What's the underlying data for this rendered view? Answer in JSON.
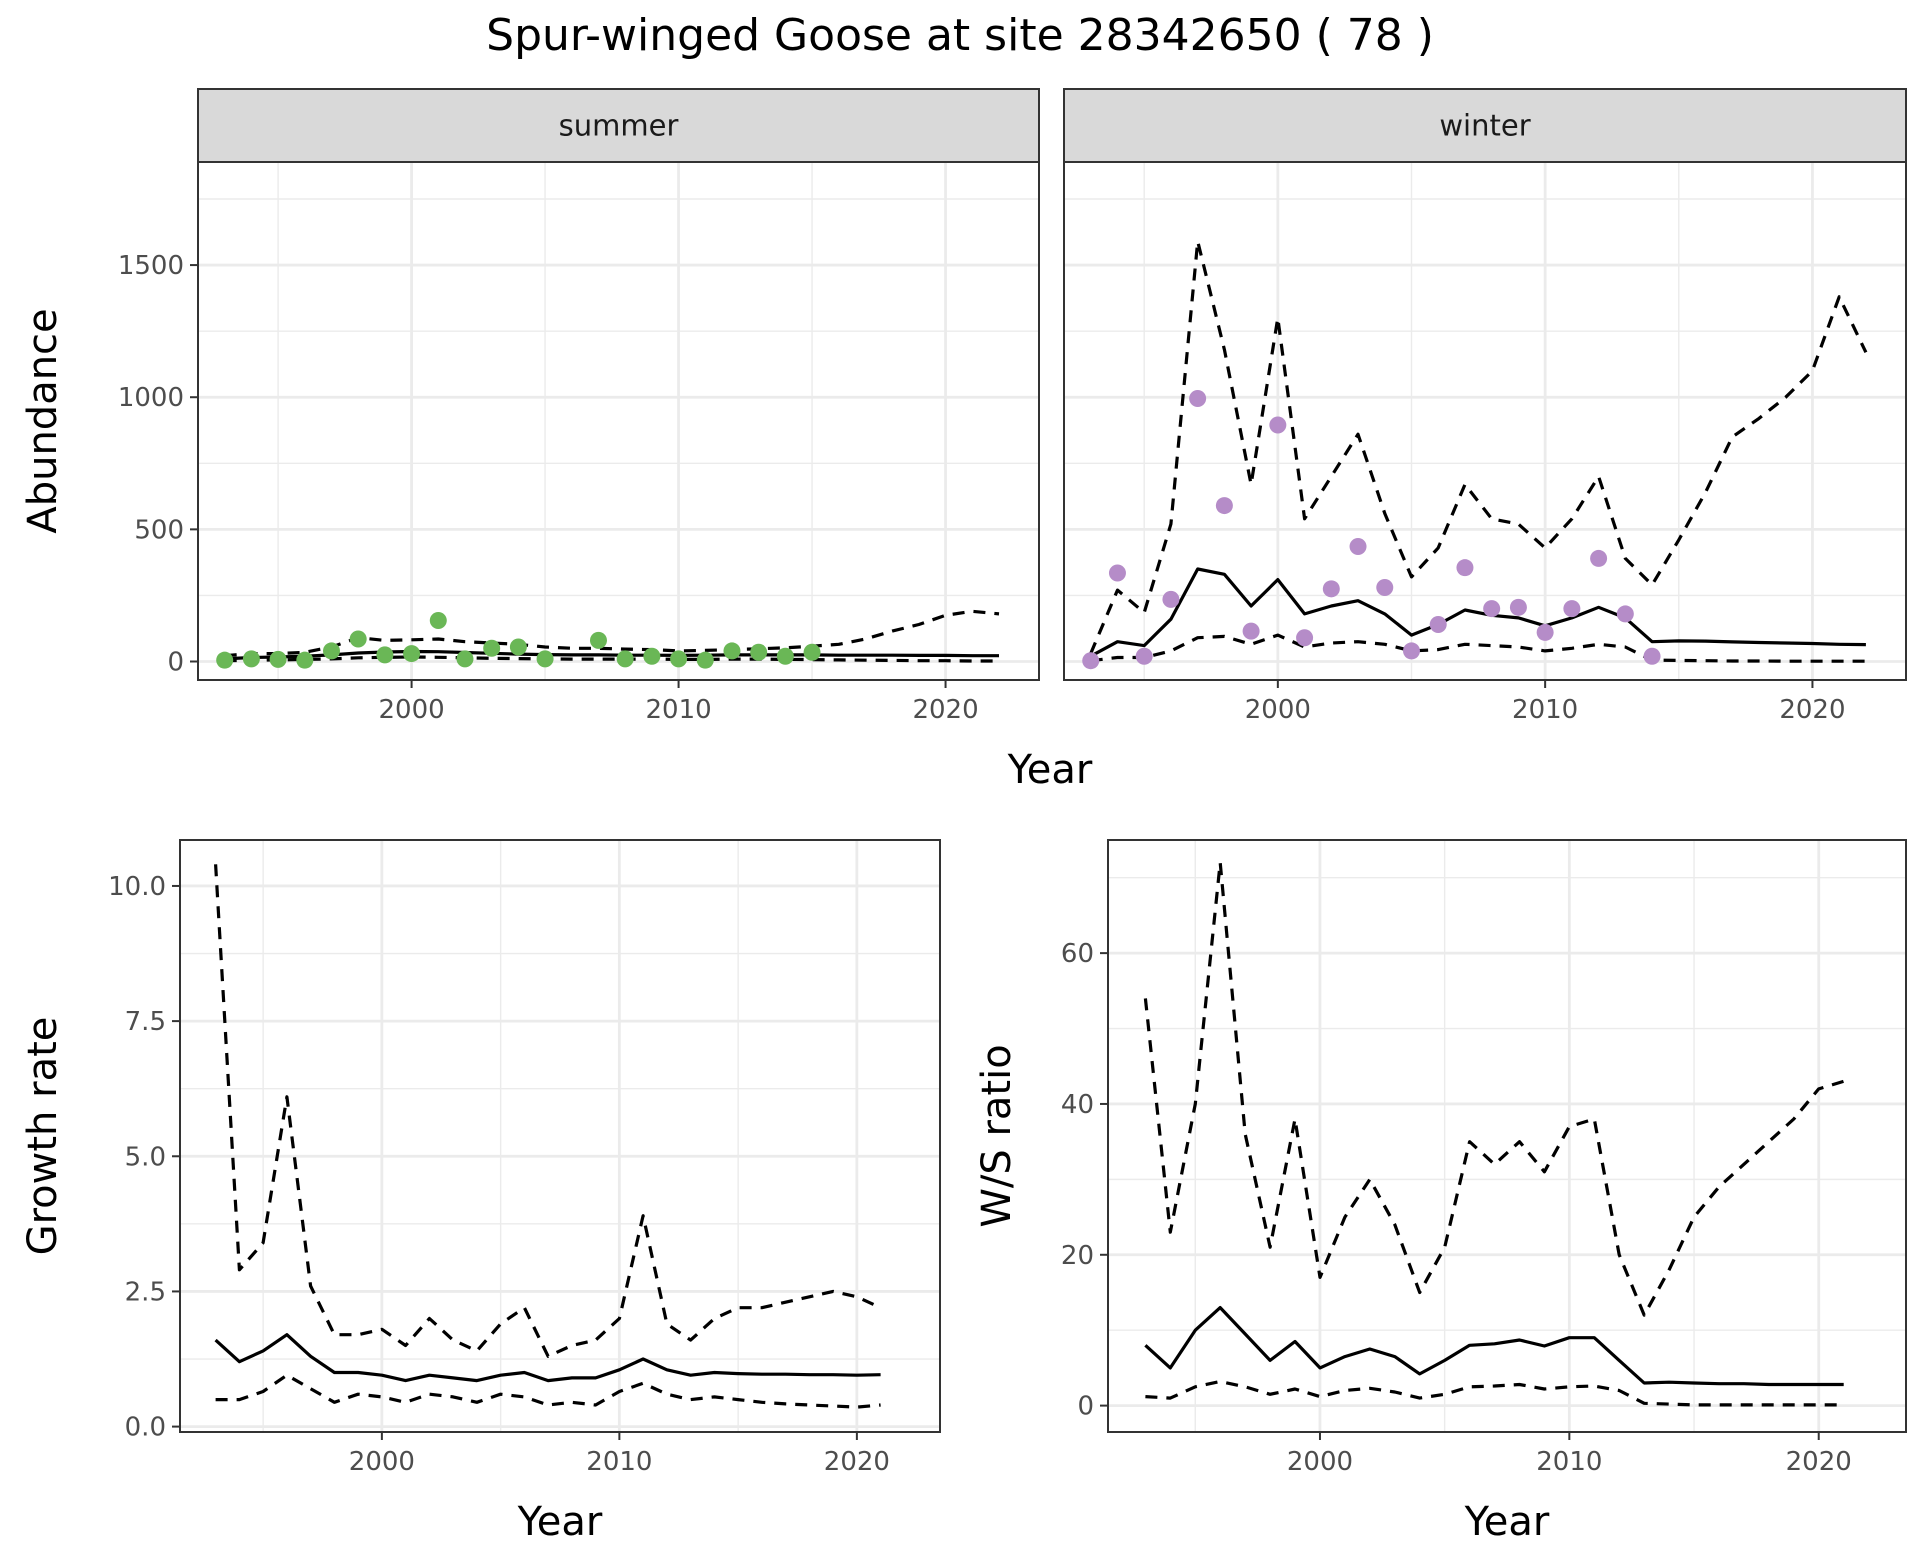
{
  "title": "Spur-winged Goose at site 28342650 ( 78 )",
  "colors": {
    "summer_points": "#6ab756",
    "winter_points": "#b58cc8",
    "lines": "#000000",
    "strip_fill": "#d9d9d9",
    "grid": "#ebebeb"
  },
  "chart_data": [
    {
      "type": "line",
      "facet": "summer",
      "strip_label": "summer",
      "xlabel": "Year",
      "ylabel": "Abundance",
      "xlim": [
        1992,
        2023.5
      ],
      "ylim": [
        -70,
        1890
      ],
      "x_ticks": [
        2000,
        2010,
        2020
      ],
      "y_ticks": [
        0,
        500,
        1000,
        1500
      ],
      "grid": true,
      "points": {
        "x": [
          1993,
          1994,
          1995,
          1996,
          1997,
          1998,
          1999,
          2000,
          2001,
          2002,
          2003,
          2004,
          2005,
          2007,
          2008,
          2009,
          2010,
          2011,
          2012,
          2013,
          2014,
          2015
        ],
        "y": [
          5,
          10,
          8,
          5,
          40,
          85,
          25,
          30,
          155,
          10,
          50,
          55,
          10,
          80,
          10,
          20,
          10,
          5,
          40,
          35,
          20,
          35
        ]
      },
      "series": [
        {
          "style": "solid",
          "x": [
            1993,
            1994,
            1995,
            1996,
            1997,
            1998,
            1999,
            2000,
            2001,
            2002,
            2003,
            2004,
            2005,
            2006,
            2007,
            2008,
            2009,
            2010,
            2011,
            2012,
            2013,
            2014,
            2015,
            2016,
            2017,
            2018,
            2019,
            2020,
            2021,
            2022
          ],
          "y": [
            10,
            15,
            17,
            20,
            25,
            32,
            36,
            38,
            37,
            34,
            31,
            28,
            26,
            25,
            25,
            24,
            24,
            23,
            24,
            25,
            25,
            25,
            25,
            24,
            24,
            24,
            23,
            23,
            22,
            22
          ]
        },
        {
          "style": "dashed",
          "x": [
            1993,
            1994,
            1995,
            1996,
            1997,
            1998,
            1999,
            2000,
            2001,
            2002,
            2003,
            2004,
            2005,
            2006,
            2007,
            2008,
            2009,
            2010,
            2011,
            2012,
            2013,
            2014,
            2015,
            2016,
            2017,
            2018,
            2019,
            2020,
            2021,
            2022
          ],
          "y": [
            22,
            30,
            30,
            35,
            55,
            90,
            80,
            82,
            85,
            75,
            70,
            65,
            55,
            50,
            50,
            47,
            45,
            40,
            42,
            45,
            48,
            52,
            58,
            65,
            85,
            115,
            140,
            175,
            190,
            180
          ]
        },
        {
          "style": "dashed",
          "x": [
            1993,
            1994,
            1995,
            1996,
            1997,
            1998,
            1999,
            2000,
            2001,
            2002,
            2003,
            2004,
            2005,
            2006,
            2007,
            2008,
            2009,
            2010,
            2011,
            2012,
            2013,
            2014,
            2015,
            2016,
            2017,
            2018,
            2019,
            2020,
            2021,
            2022
          ],
          "y": [
            3,
            5,
            6,
            8,
            10,
            14,
            16,
            17,
            16,
            14,
            12,
            11,
            10,
            9,
            9,
            9,
            9,
            8,
            8,
            9,
            9,
            8,
            7,
            6,
            5,
            4,
            3,
            3,
            2,
            2
          ]
        }
      ]
    },
    {
      "type": "line",
      "facet": "winter",
      "strip_label": "winter",
      "xlabel": "Year",
      "ylabel": "Abundance",
      "xlim": [
        1992,
        2023.5
      ],
      "ylim": [
        -70,
        1890
      ],
      "x_ticks": [
        2000,
        2010,
        2020
      ],
      "y_ticks": [
        0,
        500,
        1000,
        1500
      ],
      "grid": true,
      "points": {
        "x": [
          1993,
          1994,
          1995,
          1996,
          1997,
          1998,
          1999,
          2000,
          2001,
          2002,
          2003,
          2004,
          2005,
          2006,
          2007,
          2008,
          2009,
          2010,
          2011,
          2012,
          2013,
          2014
        ],
        "y": [
          3,
          335,
          20,
          235,
          995,
          590,
          115,
          895,
          90,
          275,
          435,
          280,
          40,
          140,
          355,
          200,
          205,
          110,
          200,
          390,
          180,
          20
        ]
      },
      "series": [
        {
          "style": "solid",
          "x": [
            1993,
            1994,
            1995,
            1996,
            1997,
            1998,
            1999,
            2000,
            2001,
            2002,
            2003,
            2004,
            2005,
            2006,
            2007,
            2008,
            2009,
            2010,
            2011,
            2012,
            2013,
            2014,
            2015,
            2016,
            2017,
            2018,
            2019,
            2020,
            2021,
            2022
          ],
          "y": [
            20,
            75,
            60,
            160,
            350,
            330,
            210,
            310,
            180,
            210,
            230,
            180,
            100,
            140,
            195,
            175,
            165,
            135,
            165,
            205,
            165,
            75,
            78,
            77,
            74,
            72,
            70,
            68,
            65,
            64
          ]
        },
        {
          "style": "dashed",
          "x": [
            1993,
            1994,
            1995,
            1996,
            1997,
            1998,
            1999,
            2000,
            2001,
            2002,
            2003,
            2004,
            2005,
            2006,
            2007,
            2008,
            2009,
            2010,
            2011,
            2012,
            2013,
            2014,
            2015,
            2016,
            2017,
            2018,
            2019,
            2020,
            2021,
            2022
          ],
          "y": [
            30,
            270,
            185,
            520,
            1590,
            1180,
            670,
            1300,
            540,
            700,
            860,
            560,
            320,
            430,
            670,
            540,
            520,
            430,
            540,
            700,
            390,
            290,
            460,
            640,
            850,
            920,
            1000,
            1100,
            1380,
            1170
          ]
        },
        {
          "style": "dashed",
          "x": [
            1993,
            1994,
            1995,
            1996,
            1997,
            1998,
            1999,
            2000,
            2001,
            2002,
            2003,
            2004,
            2005,
            2006,
            2007,
            2008,
            2009,
            2010,
            2011,
            2012,
            2013,
            2014,
            2015,
            2016,
            2017,
            2018,
            2019,
            2020,
            2021,
            2022
          ],
          "y": [
            3,
            15,
            15,
            40,
            90,
            95,
            65,
            100,
            55,
            70,
            75,
            65,
            40,
            45,
            65,
            60,
            55,
            40,
            50,
            65,
            55,
            5,
            4,
            3,
            2,
            2,
            1,
            1,
            1,
            1
          ]
        }
      ]
    },
    {
      "type": "line",
      "xlabel": "Year",
      "ylabel": "Growth rate",
      "xlim": [
        1991.5,
        2023.5
      ],
      "ylim": [
        -0.1,
        10.85
      ],
      "x_ticks": [
        2000,
        2010,
        2020
      ],
      "y_ticks": [
        0.0,
        2.5,
        5.0,
        7.5,
        10.0
      ],
      "y_tick_labels": [
        "0.0",
        "2.5",
        "5.0",
        "7.5",
        "10.0"
      ],
      "grid": true,
      "series": [
        {
          "style": "solid",
          "x": [
            1993,
            1994,
            1995,
            1996,
            1997,
            1998,
            1999,
            2000,
            2001,
            2002,
            2003,
            2004,
            2005,
            2006,
            2007,
            2008,
            2009,
            2010,
            2011,
            2012,
            2013,
            2014,
            2015,
            2016,
            2017,
            2018,
            2019,
            2020,
            2021
          ],
          "y": [
            1.6,
            1.2,
            1.4,
            1.7,
            1.3,
            1.0,
            1.0,
            0.95,
            0.85,
            0.95,
            0.9,
            0.85,
            0.95,
            1.0,
            0.85,
            0.9,
            0.9,
            1.05,
            1.25,
            1.05,
            0.95,
            1.0,
            0.98,
            0.97,
            0.97,
            0.96,
            0.96,
            0.95,
            0.96
          ]
        },
        {
          "style": "dashed",
          "x": [
            1993,
            1994,
            1995,
            1996,
            1997,
            1998,
            1999,
            2000,
            2001,
            2002,
            2003,
            2004,
            2005,
            2006,
            2007,
            2008,
            2009,
            2010,
            2011,
            2012,
            2013,
            2014,
            2015,
            2016,
            2017,
            2018,
            2019,
            2020,
            2021
          ],
          "y": [
            10.4,
            2.9,
            3.4,
            6.1,
            2.6,
            1.7,
            1.7,
            1.8,
            1.5,
            2.0,
            1.6,
            1.4,
            1.9,
            2.2,
            1.3,
            1.5,
            1.6,
            2.0,
            3.9,
            1.9,
            1.6,
            2.0,
            2.2,
            2.2,
            2.3,
            2.4,
            2.5,
            2.4,
            2.2
          ]
        },
        {
          "style": "dashed",
          "x": [
            1993,
            1994,
            1995,
            1996,
            1997,
            1998,
            1999,
            2000,
            2001,
            2002,
            2003,
            2004,
            2005,
            2006,
            2007,
            2008,
            2009,
            2010,
            2011,
            2012,
            2013,
            2014,
            2015,
            2016,
            2017,
            2018,
            2019,
            2020,
            2021
          ],
          "y": [
            0.5,
            0.5,
            0.65,
            0.95,
            0.7,
            0.45,
            0.6,
            0.55,
            0.45,
            0.6,
            0.55,
            0.45,
            0.6,
            0.55,
            0.4,
            0.45,
            0.4,
            0.65,
            0.8,
            0.6,
            0.5,
            0.55,
            0.5,
            0.45,
            0.42,
            0.4,
            0.38,
            0.36,
            0.4
          ]
        }
      ]
    },
    {
      "type": "line",
      "xlabel": "Year",
      "ylabel": "W/S ratio",
      "xlim": [
        1991.5,
        2023.5
      ],
      "ylim": [
        -3.5,
        75
      ],
      "x_ticks": [
        2000,
        2010,
        2020
      ],
      "y_ticks": [
        0,
        20,
        40,
        60
      ],
      "grid": true,
      "series": [
        {
          "style": "solid",
          "x": [
            1993,
            1994,
            1995,
            1996,
            1997,
            1998,
            1999,
            2000,
            2001,
            2002,
            2003,
            2004,
            2005,
            2006,
            2007,
            2008,
            2009,
            2010,
            2011,
            2012,
            2013,
            2014,
            2015,
            2016,
            2017,
            2018,
            2019,
            2020,
            2021
          ],
          "y": [
            8,
            5,
            10,
            13,
            9.5,
            6,
            8.5,
            5,
            6.5,
            7.5,
            6.5,
            4.2,
            6,
            8,
            8.2,
            8.7,
            7.9,
            9,
            9,
            6,
            3,
            3.1,
            3,
            2.9,
            2.9,
            2.8,
            2.8,
            2.8,
            2.8
          ]
        },
        {
          "style": "dashed",
          "x": [
            1993,
            1994,
            1995,
            1996,
            1997,
            1998,
            1999,
            2000,
            2001,
            2002,
            2003,
            2004,
            2005,
            2006,
            2007,
            2008,
            2009,
            2010,
            2011,
            2012,
            2013,
            2014,
            2015,
            2016,
            2017,
            2018,
            2019,
            2020,
            2021
          ],
          "y": [
            54,
            23,
            40,
            72,
            36,
            21,
            38,
            17,
            25,
            30,
            24,
            15,
            21,
            35,
            32,
            35,
            31,
            37,
            38,
            20,
            12,
            18,
            25,
            29,
            32,
            35,
            38,
            42,
            43
          ]
        },
        {
          "style": "dashed",
          "x": [
            1993,
            1994,
            1995,
            1996,
            1997,
            1998,
            1999,
            2000,
            2001,
            2002,
            2003,
            2004,
            2005,
            2006,
            2007,
            2008,
            2009,
            2010,
            2011,
            2012,
            2013,
            2014,
            2015,
            2016,
            2017,
            2018,
            2019,
            2020,
            2021
          ],
          "y": [
            1.2,
            1,
            2.5,
            3.2,
            2.5,
            1.5,
            2.2,
            1.2,
            2,
            2.3,
            1.8,
            1,
            1.5,
            2.5,
            2.6,
            2.8,
            2.2,
            2.5,
            2.6,
            2,
            0.3,
            0.2,
            0.1,
            0.1,
            0.1,
            0.1,
            0.1,
            0.1,
            0.1
          ]
        }
      ]
    }
  ]
}
